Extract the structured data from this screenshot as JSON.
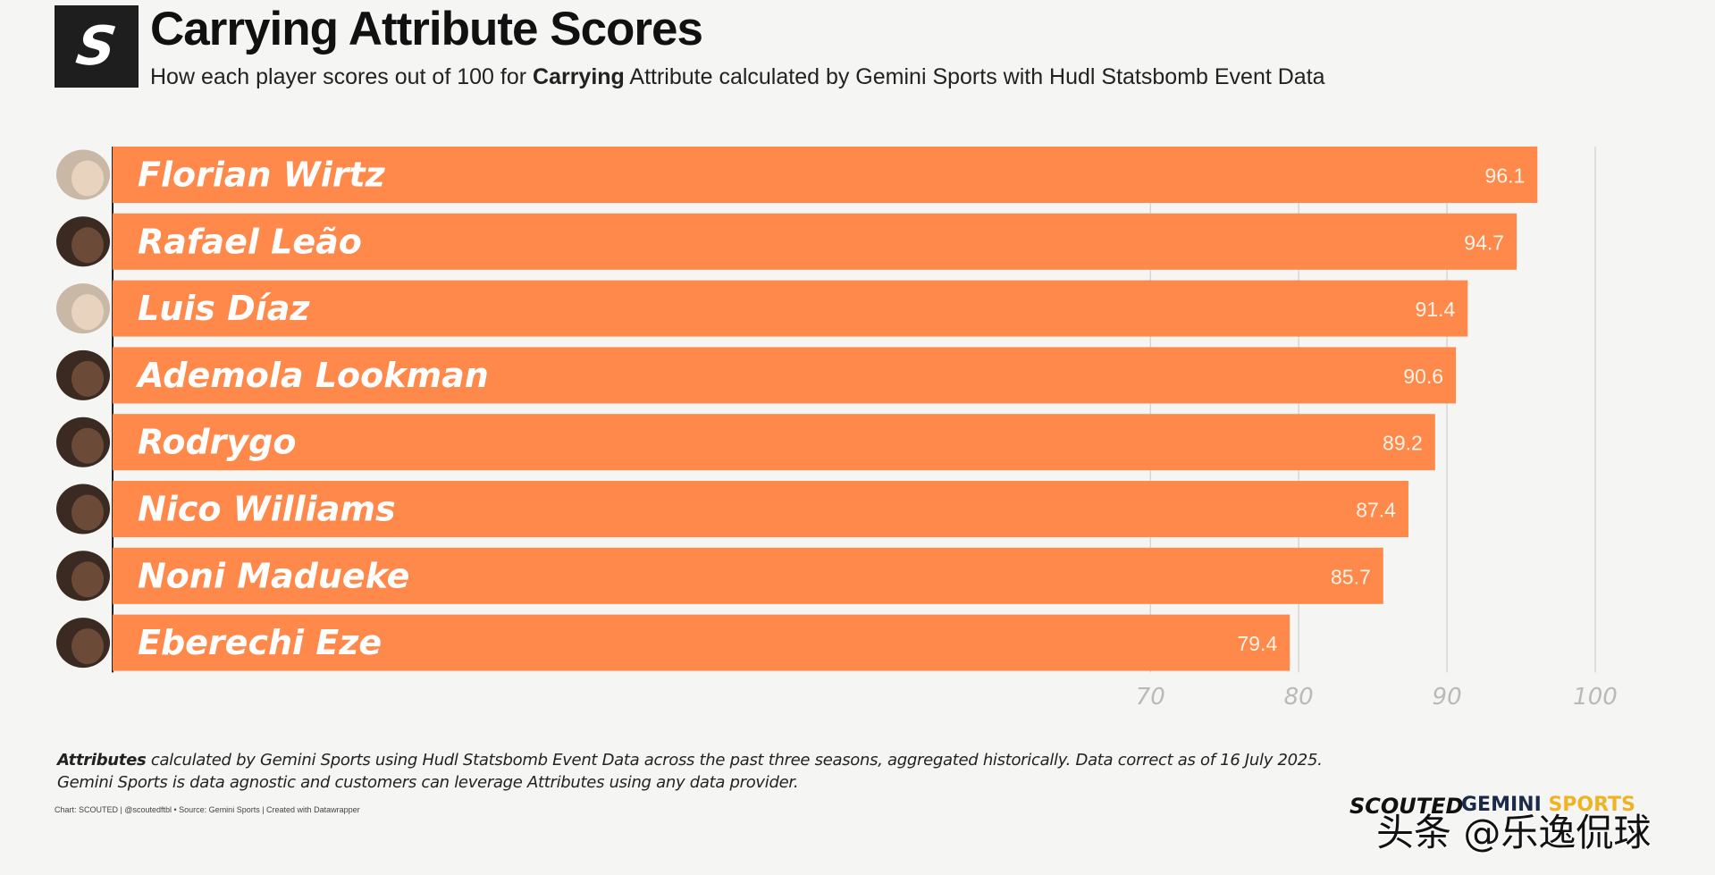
{
  "header": {
    "logo_letter": "S",
    "title": "Carrying Attribute Scores",
    "subtitle_pre": "How each player scores out of 100 for ",
    "subtitle_bold": "Carrying",
    "subtitle_post": " Attribute calculated by Gemini Sports with Hudl Statsbomb Event Data"
  },
  "chart_data": {
    "type": "bar",
    "orientation": "horizontal",
    "title": "Carrying Attribute Scores",
    "categories": [
      "Florian Wirtz",
      "Rafael Leão",
      "Luis Díaz",
      "Ademola Lookman",
      "Rodrygo",
      "Nico Williams",
      "Noni Madueke",
      "Eberechi Eze"
    ],
    "values": [
      96.1,
      94.7,
      91.4,
      90.6,
      89.2,
      87.4,
      85.7,
      79.4
    ],
    "value_labels": [
      "96.1",
      "94.7",
      "91.4",
      "90.6",
      "89.2",
      "87.4",
      "85.7",
      "79.4"
    ],
    "xlim": [
      0,
      100
    ],
    "x_ticks": [
      70,
      80,
      90,
      100
    ],
    "x_tick_labels": [
      "70",
      "80",
      "90",
      "100"
    ],
    "grid": true,
    "bar_color": "#ff884b"
  },
  "footer": {
    "note_bold": "Attributes",
    "note_line1": " calculated by Gemini Sports using Hudl Statsbomb Event Data across the past three seasons, aggregated historically. Data correct as of 16 July 2025.",
    "note_line2": "Gemini Sports is data agnostic and customers can leverage Attributes using any data provider.",
    "credit": "Chart: SCOUTED | @scoutedftbl • Source: Gemini Sports | Created with Datawrapper",
    "brand_scouted": "SCOUTED",
    "brand_gemini": "GEMINI",
    "brand_sports": "SPORTS",
    "watermark": "头条 @乐逸侃球"
  }
}
